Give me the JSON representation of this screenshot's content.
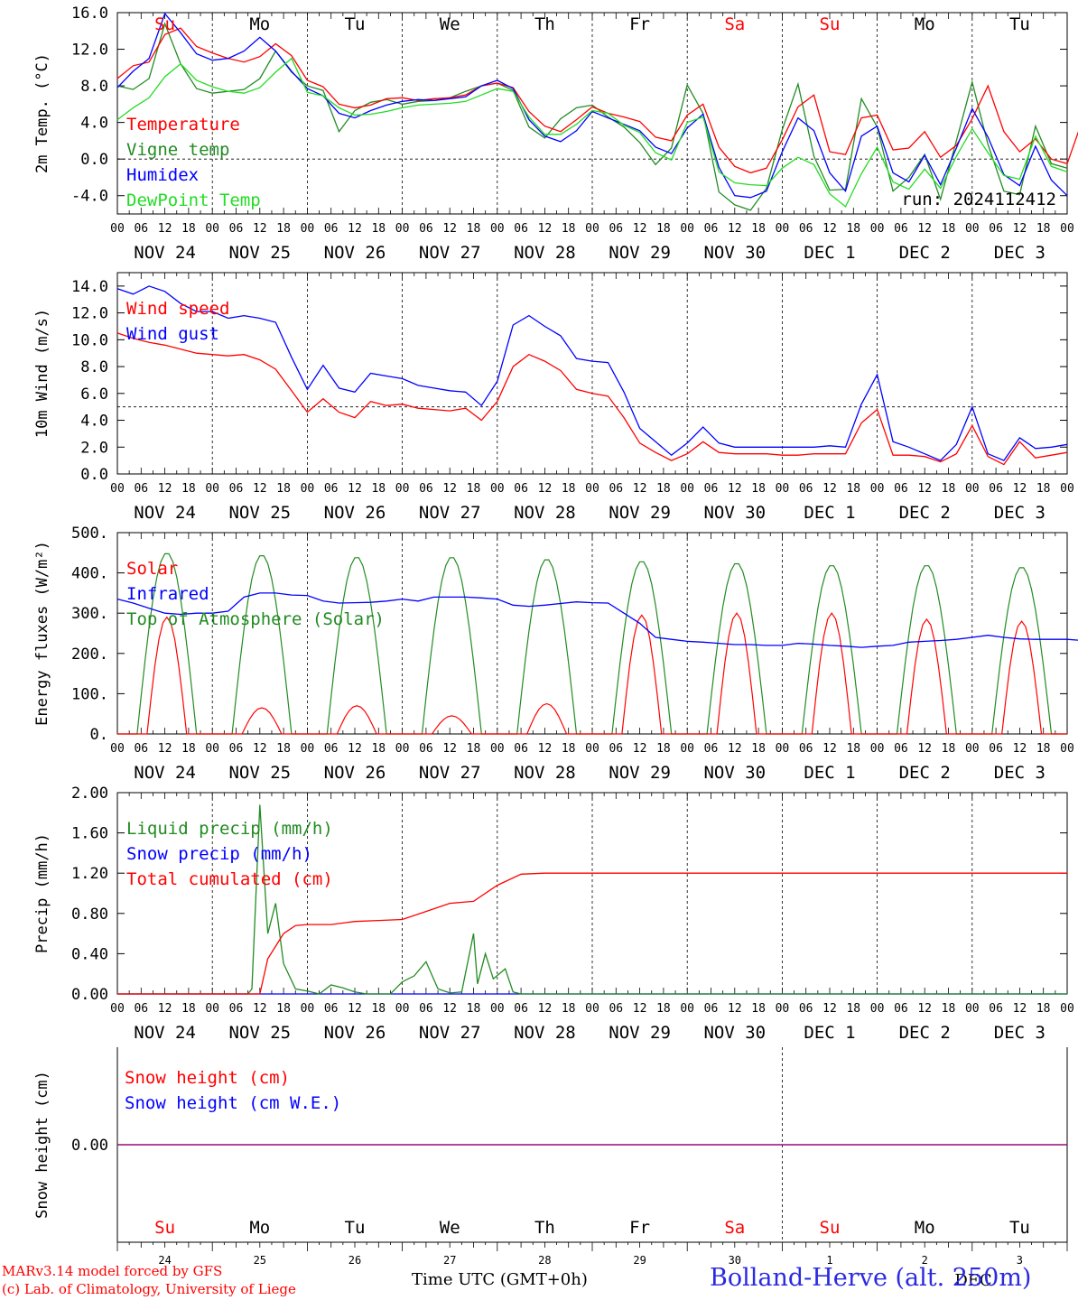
{
  "chart_data": [
    {
      "type": "line",
      "ylabel": "2m Temp. (°C)",
      "ylim": [
        -6.0,
        16.0
      ],
      "yticks": [
        "-4.0",
        "0.0",
        "4.0",
        "8.0",
        "12.0",
        "16.0"
      ],
      "reference_line": 0.0,
      "annotation": "run: 2024112412",
      "x_hours": [
        0,
        3,
        6,
        9,
        12,
        15,
        18,
        21,
        24,
        27,
        30,
        33,
        36,
        39,
        42,
        45,
        48,
        51,
        54,
        57,
        60,
        63,
        66,
        69,
        72,
        75,
        78,
        81,
        84,
        87,
        90,
        93,
        96,
        99,
        102,
        105,
        108,
        111,
        114,
        117,
        120,
        123,
        126,
        129,
        132,
        135,
        138,
        141,
        144,
        147,
        150,
        153,
        156,
        159,
        162,
        165,
        168,
        171,
        174,
        177,
        180,
        183,
        186,
        189,
        192,
        195,
        198,
        201,
        204,
        207,
        210,
        213,
        216,
        219,
        222,
        225,
        228,
        231,
        234,
        237,
        240
      ],
      "series": [
        {
          "name": "Temperature",
          "color": "#ff0000",
          "values": [
            8.8,
            10.2,
            10.6,
            13.6,
            14.3,
            12.3,
            11.6,
            11.0,
            10.6,
            11.2,
            12.6,
            11.3,
            8.6,
            7.9,
            6.0,
            5.6,
            5.9,
            6.6,
            6.7,
            6.4,
            6.6,
            6.7,
            7.0,
            8.0,
            8.3,
            7.8,
            5.2,
            3.6,
            3.0,
            4.3,
            5.7,
            5.0,
            4.6,
            4.1,
            2.4,
            2.0,
            4.8,
            6.0,
            1.3,
            -0.8,
            -1.5,
            -1.0,
            2.1,
            5.7,
            7.0,
            0.8,
            0.5,
            4.5,
            4.8,
            1.0,
            1.2,
            3.0,
            0.2,
            1.5,
            4.4,
            8.0,
            3.0,
            0.8,
            2.2,
            0.0,
            -0.5,
            4.4,
            5.2,
            1.0,
            -1.2
          ]
        },
        {
          "name": "Vigne temp",
          "color": "#228b22",
          "values": [
            8.0,
            7.6,
            8.8,
            14.8,
            10.4,
            7.7,
            7.2,
            7.4,
            7.6,
            8.8,
            11.8,
            9.5,
            8.0,
            7.5,
            3.0,
            5.3,
            6.2,
            6.5,
            6.0,
            6.3,
            6.4,
            6.7,
            7.4,
            8.0,
            8.3,
            7.5,
            3.5,
            2.3,
            4.4,
            5.6,
            5.9,
            4.6,
            3.5,
            1.8,
            -0.6,
            1.2,
            8.1,
            5.0,
            -3.6,
            -5.0,
            -5.6,
            -3.2,
            3.2,
            8.2,
            0.3,
            -3.4,
            -3.3,
            6.6,
            3.5,
            -3.5,
            -2.0,
            0.5,
            -4.4,
            2.0,
            8.4,
            1.6,
            -3.5,
            -3.9,
            3.6,
            -0.5,
            -1.0
          ]
        },
        {
          "name": "Humidex",
          "color": "#0000ff",
          "values": [
            7.8,
            9.6,
            11.0,
            15.9,
            13.8,
            11.5,
            10.8,
            11.0,
            11.8,
            13.3,
            11.8,
            9.6,
            7.7,
            6.9,
            5.0,
            4.5,
            5.3,
            5.9,
            6.3,
            6.5,
            6.4,
            6.6,
            6.8,
            8.0,
            8.6,
            7.7,
            4.3,
            2.5,
            1.9,
            3.1,
            5.2,
            4.5,
            3.8,
            3.1,
            1.3,
            0.6,
            3.4,
            4.9,
            -0.9,
            -4.0,
            -4.2,
            -3.5,
            0.8,
            4.5,
            3.1,
            -1.5,
            -3.5,
            2.5,
            3.6,
            -1.5,
            -2.5,
            0.4,
            -2.8,
            1.2,
            5.5,
            2.4,
            -1.7,
            -2.9,
            1.4,
            -2.3,
            -4.0
          ]
        },
        {
          "name": "DewPoint Temp",
          "color": "#22dd22",
          "values": [
            4.3,
            5.6,
            6.7,
            9.0,
            10.4,
            8.6,
            7.9,
            7.4,
            7.2,
            7.8,
            9.5,
            11.0,
            7.3,
            6.9,
            5.6,
            4.8,
            4.9,
            5.2,
            5.6,
            5.9,
            6.0,
            6.1,
            6.3,
            7.0,
            7.7,
            7.4,
            4.6,
            2.7,
            2.7,
            3.8,
            5.3,
            5.0,
            3.7,
            2.9,
            0.7,
            -0.1,
            4.0,
            4.6,
            -1.4,
            -2.6,
            -2.8,
            -2.9,
            -1.0,
            0.2,
            -0.6,
            -3.8,
            -5.2,
            -1.6,
            1.3,
            -2.5,
            -3.3,
            -1.1,
            -3.2,
            0.3,
            3.3,
            0.7,
            -1.8,
            -2.2,
            2.5,
            -0.8,
            -1.4
          ]
        }
      ]
    },
    {
      "type": "line",
      "ylabel": "10m Wind (m/s)",
      "ylim": [
        0.0,
        15.0
      ],
      "yticks": [
        "0.0",
        "2.0",
        "4.0",
        "6.0",
        "8.0",
        "10.0",
        "12.0",
        "14.0"
      ],
      "reference_line": 5.0,
      "series": [
        {
          "name": "Wind speed",
          "color": "#ff0000",
          "values": [
            10.5,
            10.1,
            9.8,
            9.6,
            9.3,
            9.0,
            8.9,
            8.8,
            8.9,
            8.5,
            7.8,
            6.2,
            4.6,
            5.6,
            4.6,
            4.2,
            5.4,
            5.1,
            5.2,
            4.9,
            4.8,
            4.7,
            4.9,
            4.0,
            5.4,
            8.0,
            8.9,
            8.4,
            7.7,
            6.3,
            6.0,
            5.8,
            4.2,
            2.3,
            1.6,
            1.0,
            1.5,
            2.4,
            1.6,
            1.5,
            1.5,
            1.5,
            1.4,
            1.4,
            1.5,
            1.5,
            1.5,
            3.8,
            4.8,
            1.4,
            1.4,
            1.3,
            0.9,
            1.5,
            3.6,
            1.3,
            0.7,
            2.4,
            1.2,
            1.4,
            1.6
          ]
        },
        {
          "name": "Wind gust",
          "color": "#0000ff",
          "values": [
            13.8,
            13.4,
            14.0,
            13.6,
            12.7,
            12.1,
            12.1,
            11.6,
            11.8,
            11.6,
            11.3,
            8.7,
            6.3,
            8.1,
            6.4,
            6.1,
            7.5,
            7.3,
            7.1,
            6.6,
            6.4,
            6.2,
            6.1,
            5.1,
            6.9,
            11.1,
            11.8,
            11.0,
            10.3,
            8.6,
            8.4,
            8.3,
            6.1,
            3.4,
            2.4,
            1.4,
            2.3,
            3.5,
            2.3,
            2.0,
            2.0,
            2.0,
            2.0,
            2.0,
            2.0,
            2.1,
            2.0,
            5.2,
            7.4,
            2.4,
            2.0,
            1.5,
            1.0,
            2.2,
            5.0,
            1.5,
            1.0,
            2.7,
            1.9,
            2.0,
            2.2
          ]
        }
      ]
    },
    {
      "type": "line",
      "ylabel": "Energy fluxes (W/m²)",
      "ylim": [
        0.0,
        500.0
      ],
      "yticks": [
        "0.",
        "100.",
        "200.",
        "300.",
        "400.",
        "500."
      ],
      "series": [
        {
          "name": "Solar",
          "color": "#ff0000"
        },
        {
          "name": "Infrared",
          "color": "#0000ff",
          "values": [
            335,
            325,
            312,
            300,
            297,
            300,
            300,
            305,
            340,
            350,
            350,
            345,
            344,
            330,
            325,
            326,
            327,
            330,
            335,
            330,
            340,
            340,
            340,
            338,
            335,
            320,
            317,
            320,
            324,
            328,
            326,
            325,
            300,
            275,
            240,
            235,
            230,
            228,
            225,
            222,
            222,
            220,
            220,
            225,
            223,
            220,
            218,
            215,
            218,
            220,
            228,
            230,
            232,
            235,
            240,
            245,
            240,
            236,
            235,
            235,
            235,
            232
          ]
        },
        {
          "name": "Top of Atmosphere (Solar)",
          "color": "#228b22"
        }
      ],
      "daily_peaks": {
        "solar": [
          290,
          65,
          70,
          45,
          75,
          295,
          300,
          300,
          285,
          280
        ],
        "top_of_atmosphere": [
          450,
          445,
          440,
          440,
          435,
          430,
          425,
          420,
          420,
          415
        ]
      }
    },
    {
      "type": "line",
      "ylabel": "Precip (mm/h)",
      "ylim": [
        0.0,
        2.0
      ],
      "yticks": [
        "0.00",
        "0.40",
        "0.80",
        "1.20",
        "1.60",
        "2.00"
      ],
      "series": [
        {
          "name": "Liquid precip (mm/h)",
          "color": "#228b22",
          "points": [
            [
              0,
              0
            ],
            [
              33,
              0
            ],
            [
              34,
              0.05
            ],
            [
              36,
              1.88
            ],
            [
              38,
              0.6
            ],
            [
              40,
              0.9
            ],
            [
              42,
              0.3
            ],
            [
              45,
              0.05
            ],
            [
              48,
              0.03
            ],
            [
              51,
              0
            ],
            [
              54,
              0.09
            ],
            [
              57,
              0.06
            ],
            [
              60,
              0.02
            ],
            [
              63,
              0
            ],
            [
              69,
              0
            ],
            [
              72,
              0.12
            ],
            [
              75,
              0.18
            ],
            [
              78,
              0.32
            ],
            [
              81,
              0.05
            ],
            [
              84,
              0.01
            ],
            [
              87,
              0.02
            ],
            [
              90,
              0.6
            ],
            [
              91,
              0.1
            ],
            [
              93,
              0.4
            ],
            [
              95,
              0.15
            ],
            [
              98,
              0.25
            ],
            [
              100,
              0.02
            ],
            [
              102,
              0
            ],
            [
              240,
              0
            ]
          ]
        },
        {
          "name": "Snow precip (mm/h)",
          "color": "#0000ff",
          "points": [
            [
              0,
              0
            ],
            [
              240,
              0
            ]
          ]
        },
        {
          "name": "Total cumulated (cm)",
          "color": "#ff0000",
          "points": [
            [
              0,
              0
            ],
            [
              36,
              0
            ],
            [
              38,
              0.35
            ],
            [
              42,
              0.6
            ],
            [
              45,
              0.68
            ],
            [
              48,
              0.69
            ],
            [
              54,
              0.69
            ],
            [
              60,
              0.72
            ],
            [
              66,
              0.73
            ],
            [
              72,
              0.74
            ],
            [
              78,
              0.82
            ],
            [
              84,
              0.9
            ],
            [
              90,
              0.92
            ],
            [
              96,
              1.08
            ],
            [
              102,
              1.19
            ],
            [
              108,
              1.2
            ],
            [
              240,
              1.2
            ]
          ]
        }
      ]
    },
    {
      "type": "line",
      "ylabel": "Snow height (cm)",
      "yticks": [
        "0.00"
      ],
      "series": [
        {
          "name": "Snow height (cm)",
          "color": "#ff0000",
          "values": [
            0,
            0
          ]
        },
        {
          "name": "Snow height (cm W.E.)",
          "color": "#0000ff",
          "values": [
            0,
            0
          ]
        }
      ]
    }
  ],
  "axis": {
    "hour_ticks": [
      "00",
      "06",
      "12",
      "18"
    ],
    "final_tick": "00",
    "dates": [
      "NOV 24",
      "NOV 25",
      "NOV 26",
      "NOV 27",
      "NOV 28",
      "NOV 29",
      "NOV 30",
      "DEC  1",
      "DEC  2",
      "DEC  3"
    ],
    "weekdays": [
      "Su",
      "Mo",
      "Tu",
      "We",
      "Th",
      "Fr",
      "Sa",
      "Su",
      "Mo",
      "Tu"
    ],
    "weekday_colors": [
      "#ff0000",
      "#000000",
      "#000000",
      "#000000",
      "#000000",
      "#000000",
      "#ff0000",
      "#ff0000",
      "#000000",
      "#000000"
    ],
    "day_numbers": [
      "24",
      "25",
      "26",
      "27",
      "28",
      "29",
      "30",
      "1",
      "2",
      "3"
    ],
    "dec_label": "DEC"
  },
  "footer": {
    "credit_line1": "MARv3.14 model forced by GFS",
    "credit_line2": "(c) Lab. of Climatology, University of Liege",
    "xtitle": "Time UTC (GMT+0h)",
    "location": "Bolland-Herve (alt. 250m)"
  },
  "colors": {
    "red": "#ff0000",
    "green": "#228b22",
    "light_green": "#22dd22",
    "blue": "#0000ff",
    "purple": "#800080"
  }
}
